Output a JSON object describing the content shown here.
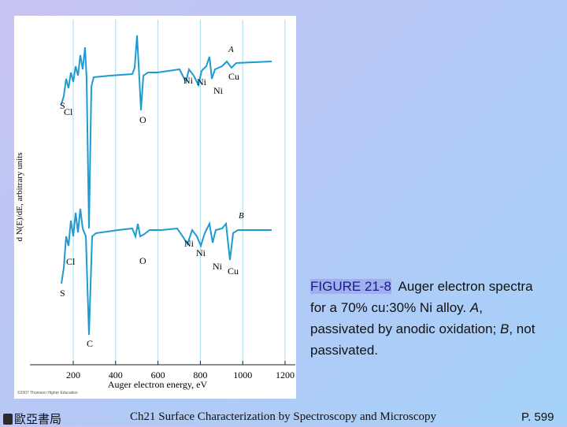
{
  "figure": {
    "ylabel": "d N(E)/dE, arbitrary units",
    "xlabel": "Auger electron energy, eV",
    "xticks": [
      200,
      400,
      600,
      800,
      1000,
      1200
    ],
    "copyright": "©2007 Thomson Higher Education",
    "spectra": [
      {
        "name": "A",
        "labels": [
          "S",
          "Cl",
          "O",
          "Ni",
          "Ni",
          "Ni",
          "Cu"
        ]
      },
      {
        "name": "B",
        "labels": [
          "S",
          "Cl",
          "C",
          "O",
          "Ni",
          "Ni",
          "Ni",
          "Cu"
        ]
      }
    ]
  },
  "caption": {
    "figure_number": "FIGURE 21-8",
    "parts": [
      "Auger electron spectra for a 70% cu:30% Ni alloy. ",
      "A",
      ", passivated by anodic oxidation; ",
      "B",
      ", not passivated."
    ]
  },
  "footer": {
    "publisher": "歐亞書局",
    "chapter": "Ch21 Surface Characterization by Spectroscopy and Microscopy",
    "page": "P. 599"
  }
}
